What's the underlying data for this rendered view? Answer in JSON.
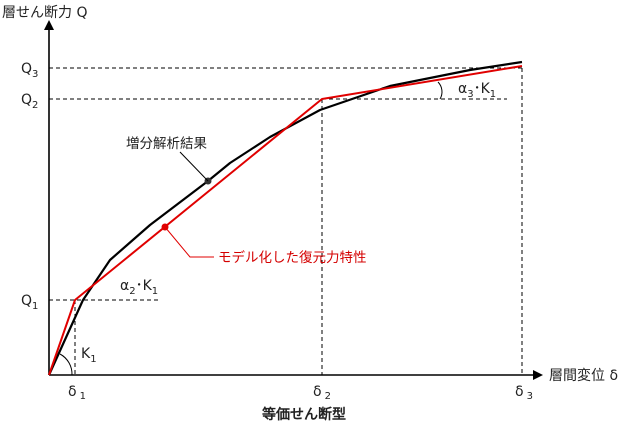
{
  "diagram": {
    "y_axis_label": "層せん断力 Q",
    "x_axis_label": "層間変位 δ",
    "caption": "等価せん断型",
    "y_ticks": [
      {
        "base": "Q",
        "sub": "3"
      },
      {
        "base": "Q",
        "sub": "2"
      },
      {
        "base": "Q",
        "sub": "1"
      }
    ],
    "x_ticks": [
      {
        "base": "δ",
        "sub": "1"
      },
      {
        "base": "δ",
        "sub": "2"
      },
      {
        "base": "δ",
        "sub": "3"
      }
    ],
    "annotations": {
      "analysis_result": "増分解析結果",
      "model_curve": "モデル化した復元力特性",
      "k1_label": {
        "base": "K",
        "sub": "1"
      },
      "alpha2_label": {
        "alpha": "α",
        "alpha_sub": "2",
        "dot": "･",
        "base": "K",
        "sub": "1"
      },
      "alpha3_label": {
        "alpha": "α",
        "alpha_sub": "3",
        "dot": "･",
        "base": "K",
        "sub": "1"
      }
    },
    "colors": {
      "analysis_curve": "#000000",
      "model_curve": "#e00000",
      "model_label": "#d40000",
      "axes": "#000000"
    }
  }
}
